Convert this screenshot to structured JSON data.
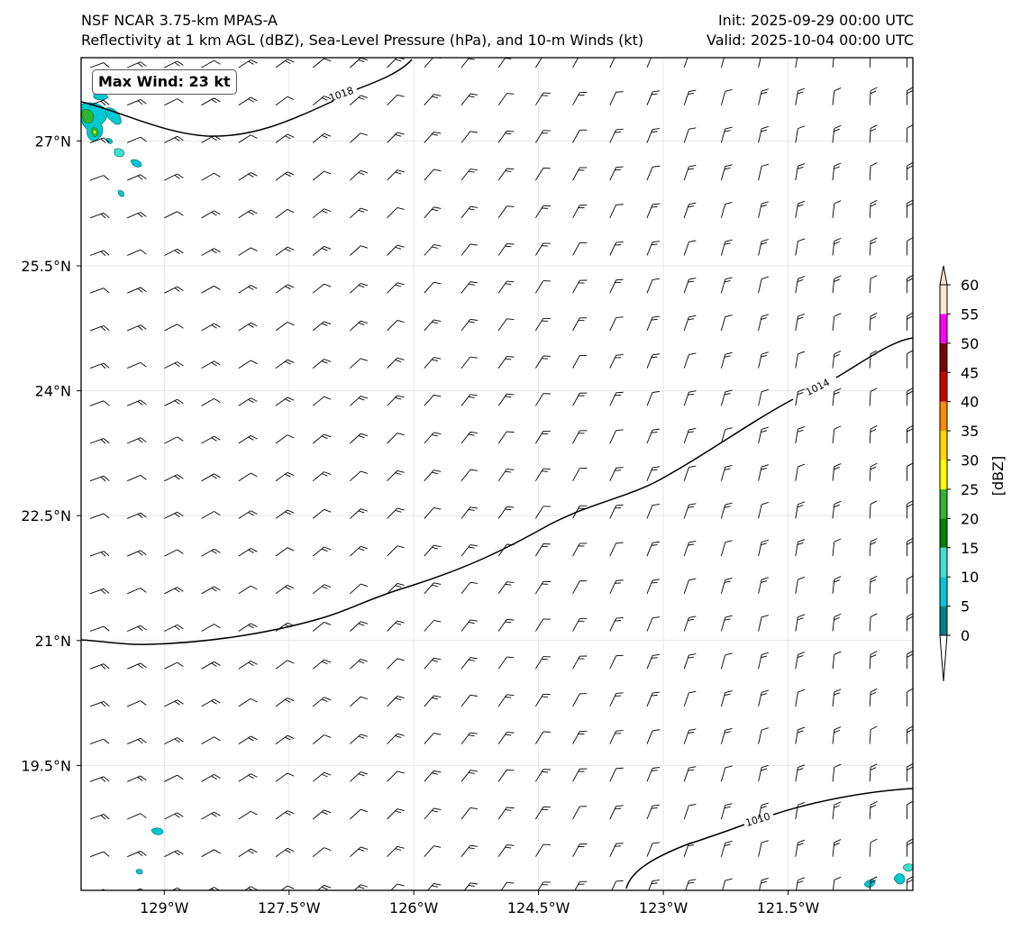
{
  "titles": {
    "model": "NSF NCAR 3.75-km MPAS-A",
    "fields": "Reflectivity at 1 km AGL (dBZ), Sea-Level Pressure (hPa), and 10-m Winds (kt)",
    "init": "Init: 2025-09-29 00:00 UTC",
    "valid": "Valid: 2025-10-04 00:00 UTC"
  },
  "max_wind": "Max Wind: 23 kt",
  "axes": {
    "lon_ticks": [
      {
        "value": -129.0,
        "label": "129°W"
      },
      {
        "value": -127.5,
        "label": "127.5°W"
      },
      {
        "value": -126.0,
        "label": "126°W"
      },
      {
        "value": -124.5,
        "label": "124.5°W"
      },
      {
        "value": -123.0,
        "label": "123°W"
      },
      {
        "value": -121.5,
        "label": "121.5°W"
      }
    ],
    "lat_ticks": [
      {
        "value": 27.0,
        "label": "27°N"
      },
      {
        "value": 25.5,
        "label": "25.5°N"
      },
      {
        "value": 24.0,
        "label": "24°N"
      },
      {
        "value": 22.5,
        "label": "22.5°N"
      },
      {
        "value": 21.0,
        "label": "21°N"
      },
      {
        "value": 19.5,
        "label": "19.5°N"
      }
    ],
    "lon_range": [
      -130.0,
      -120.0
    ],
    "lat_range": [
      18.0,
      28.0
    ],
    "grid": true
  },
  "colorbar": {
    "label": "[dBZ]",
    "ticks": [
      "0",
      "5",
      "10",
      "15",
      "20",
      "25",
      "30",
      "35",
      "40",
      "45",
      "50",
      "55",
      "60"
    ],
    "colors": [
      "#008080",
      "#00c8d2",
      "#40e0d0",
      "#008000",
      "#32b432",
      "#ffff00",
      "#ffd700",
      "#ff8c00",
      "#cc0000",
      "#800000",
      "#ff00ff",
      "#ffe4d2"
    ],
    "extend": "both"
  },
  "isobars": [
    {
      "label": "1018",
      "value": 1018
    },
    {
      "label": "1014",
      "value": 1014
    },
    {
      "label": "1010",
      "value": 1010
    }
  ],
  "chart_data": {
    "type": "map",
    "variables": [
      "reflectivity_1km_dBZ",
      "sea_level_pressure_hPa",
      "wind_10m_kt"
    ],
    "lon_range": [
      -130.0,
      -120.0
    ],
    "lat_range": [
      18.0,
      28.0
    ],
    "isobar_values": [
      1010,
      1014,
      1018
    ],
    "max_wind_kt": 23,
    "wind_regime": "light northeasterly to northerly trades",
    "reflectivity_cells": "scattered light showers near 27N 130W and small cells near 18N"
  }
}
